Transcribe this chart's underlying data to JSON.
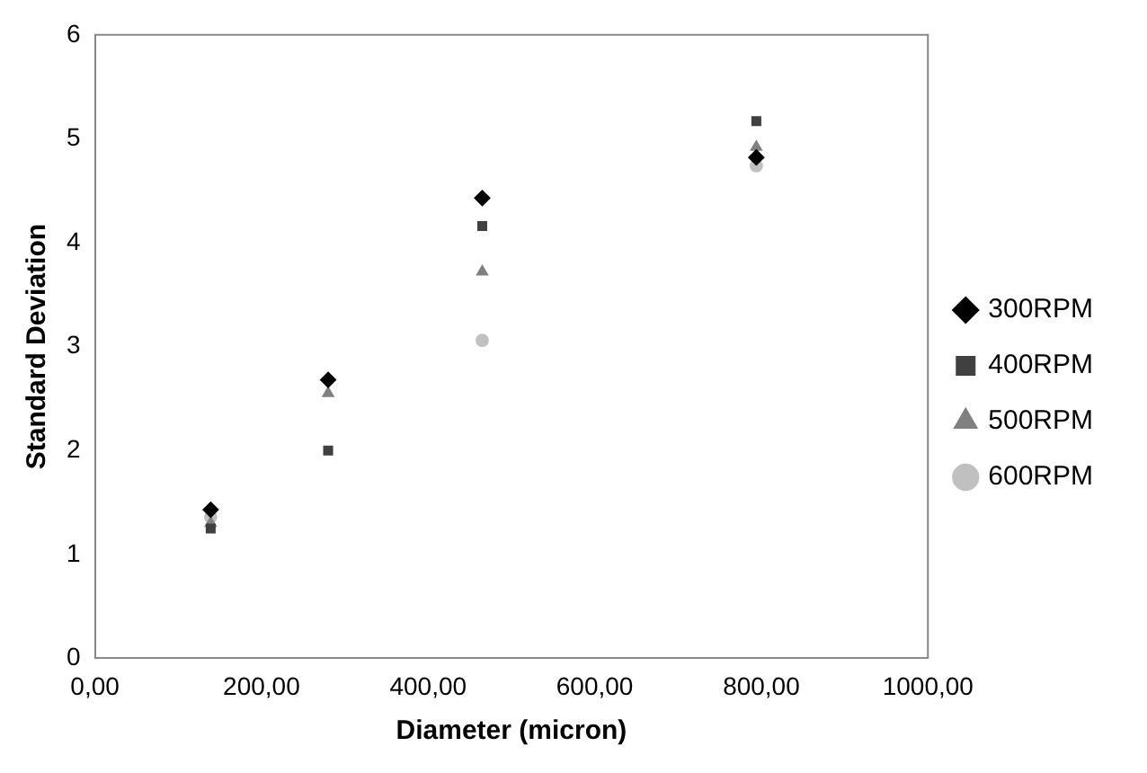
{
  "chart_data": {
    "type": "scatter",
    "xlabel": "Diameter (micron)",
    "ylabel": "Standard Deviation",
    "x": [
      139,
      280,
      465,
      794
    ],
    "series": [
      {
        "name": "300RPM",
        "color": "#000000",
        "marker": "diamond",
        "values": [
          1.43,
          2.68,
          4.43,
          4.82
        ]
      },
      {
        "name": "400RPM",
        "color": "#404040",
        "marker": "square",
        "values": [
          1.25,
          2.0,
          4.16,
          5.17
        ]
      },
      {
        "name": "500RPM",
        "color": "#808080",
        "marker": "triangle",
        "values": [
          1.3,
          2.55,
          3.72,
          4.92
        ]
      },
      {
        "name": "600RPM",
        "color": "#c0c0c0",
        "marker": "circle",
        "values": [
          1.36,
          null,
          3.06,
          4.74
        ]
      }
    ],
    "xlim": [
      0,
      1000
    ],
    "xticks": [
      {
        "value": 0,
        "label": "0,00"
      },
      {
        "value": 200,
        "label": "200,00"
      },
      {
        "value": 400,
        "label": "400,00"
      },
      {
        "value": 600,
        "label": "600,00"
      },
      {
        "value": 800,
        "label": "800,00"
      },
      {
        "value": 1000,
        "label": "1000,00"
      }
    ],
    "ylim": [
      0,
      6
    ],
    "yticks": [
      0,
      1,
      2,
      3,
      4,
      5,
      6
    ],
    "grid": false,
    "legend": "right"
  }
}
